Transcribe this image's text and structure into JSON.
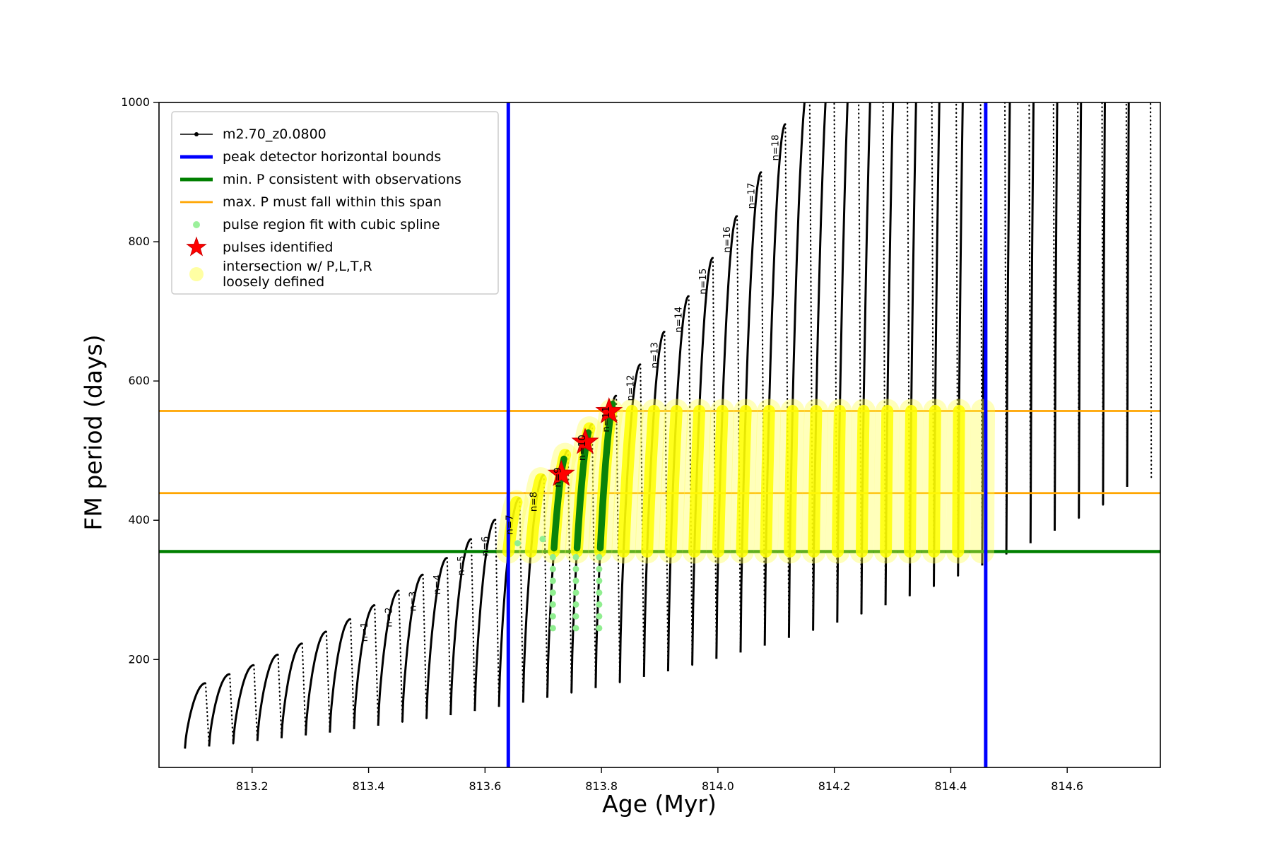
{
  "chart_data": {
    "type": "line",
    "title": "",
    "xlabel": "Age (Myr)",
    "ylabel": "FM period (days)",
    "xlim": [
      813.04,
      814.76
    ],
    "ylim": [
      45,
      1000
    ],
    "xticks": [
      813.2,
      813.4,
      813.6,
      813.8,
      814.0,
      814.2,
      814.4,
      814.6
    ],
    "yticks": [
      200,
      400,
      600,
      800,
      1000
    ],
    "grid": false,
    "series_label": "m2.70_z0.0800",
    "pulse_cycles": {
      "peak_age": [
        813.12,
        813.1615,
        813.203,
        813.2445,
        813.286,
        813.3275,
        813.369,
        813.4105,
        813.452,
        813.4935,
        813.535,
        813.5765,
        813.618,
        813.6595,
        813.701,
        813.7425,
        813.784,
        813.8255,
        813.867,
        813.9085,
        813.95,
        813.9915,
        814.033,
        814.0745,
        814.116,
        814.1575,
        814.199,
        814.2405,
        814.282,
        814.3235,
        814.365,
        814.4065,
        814.448,
        814.4895,
        814.531,
        814.5725,
        814.614,
        814.6555,
        814.697,
        814.7385
      ],
      "peak_period": [
        166,
        179,
        192,
        207,
        223,
        240,
        258,
        278,
        299,
        322,
        346,
        373,
        401,
        432,
        465,
        500,
        538,
        579,
        624,
        671,
        722,
        777,
        837,
        900,
        969,
        1043,
        1122,
        1208,
        1300,
        1399,
        1506,
        1621,
        1744,
        1877,
        2020,
        2174,
        2340,
        2518,
        2710,
        2917
      ],
      "trough_period": [
        72,
        75,
        79,
        83,
        87,
        91,
        95,
        100,
        105,
        110,
        115,
        120,
        126,
        132,
        138,
        145,
        152,
        159,
        167,
        175,
        183,
        192,
        201,
        210,
        220,
        231,
        242,
        253,
        265,
        278,
        291,
        305,
        320,
        335,
        351,
        367,
        385,
        403,
        422,
        448
      ],
      "rise_span": 0.0355,
      "fall_span": 0.006,
      "rise_shape_exponent": 0.7
    },
    "peak_labels": [
      {
        "text": "n=1",
        "age": 813.4105,
        "period": 278
      },
      {
        "text": "n=2",
        "age": 813.452,
        "period": 299
      },
      {
        "text": "n=3",
        "age": 813.4935,
        "period": 322
      },
      {
        "text": "n=4",
        "age": 813.535,
        "period": 346
      },
      {
        "text": "n=5",
        "age": 813.5765,
        "period": 373
      },
      {
        "text": "n=6",
        "age": 813.618,
        "period": 401
      },
      {
        "text": "n=7",
        "age": 813.6595,
        "period": 432
      },
      {
        "text": "n=8",
        "age": 813.701,
        "period": 465
      },
      {
        "text": "n=9",
        "age": 813.7425,
        "period": 500
      },
      {
        "text": "n=10",
        "age": 813.784,
        "period": 538
      },
      {
        "text": "n=11",
        "age": 813.8255,
        "period": 579
      },
      {
        "text": "n=12",
        "age": 813.867,
        "period": 624
      },
      {
        "text": "n=13",
        "age": 813.9085,
        "period": 671
      },
      {
        "text": "n=14",
        "age": 813.95,
        "period": 722
      },
      {
        "text": "n=15",
        "age": 813.9915,
        "period": 777
      },
      {
        "text": "n=16",
        "age": 814.033,
        "period": 837
      },
      {
        "text": "n=17",
        "age": 814.0745,
        "period": 900
      },
      {
        "text": "n=18",
        "age": 814.116,
        "period": 969
      }
    ],
    "peak_detector_bounds": {
      "ages": [
        813.64,
        814.46
      ],
      "color": "#0000ff"
    },
    "min_p_line": {
      "period": 355,
      "color": "#007f00"
    },
    "max_p_span": {
      "periods": [
        439,
        557
      ],
      "color": "#ffa500"
    },
    "intersection_band": {
      "period_min": 355,
      "period_max": 557,
      "age_min": 813.655,
      "age_max": 814.5,
      "bright_age_max": 814.465,
      "color_core": "#ffff00",
      "color_halo": "#ffff4d"
    },
    "spline_columns": {
      "color_dark": "#0a820a",
      "color_light": "#90ee90",
      "cycle_ages": [
        813.7425,
        813.784,
        813.8255
      ],
      "period_min": 360,
      "dot_periods_below": [
        245,
        262,
        279,
        296,
        313,
        330,
        347
      ],
      "extra_points": [
        [
          813.656,
          367
        ],
        [
          813.699,
          373
        ]
      ]
    },
    "pulses_identified": {
      "color": "#ff0000",
      "points": [
        [
          813.731,
          466
        ],
        [
          813.772,
          512
        ],
        [
          813.813,
          556
        ]
      ]
    }
  },
  "legend": {
    "items": [
      {
        "label": "m2.70_z0.0800",
        "type": "line",
        "color": "#000000",
        "lw": 1.6,
        "marker": "dot"
      },
      {
        "label": "peak detector horizontal bounds",
        "type": "line",
        "color": "#0000ff",
        "lw": 5
      },
      {
        "label": "min. P consistent with observations",
        "type": "line",
        "color": "#007f00",
        "lw": 5
      },
      {
        "label": "max. P must fall within this span",
        "type": "line",
        "color": "#ffa500",
        "lw": 2.8
      },
      {
        "label": "pulse region fit with cubic spline",
        "type": "dot",
        "color": "#90ee90",
        "r": 5
      },
      {
        "label": "pulses identified",
        "type": "star",
        "color": "#ff0000"
      },
      {
        "label": "intersection w/ P,L,T,R\nloosely defined",
        "type": "dot",
        "color": "#ffff99",
        "r": 10
      }
    ]
  }
}
